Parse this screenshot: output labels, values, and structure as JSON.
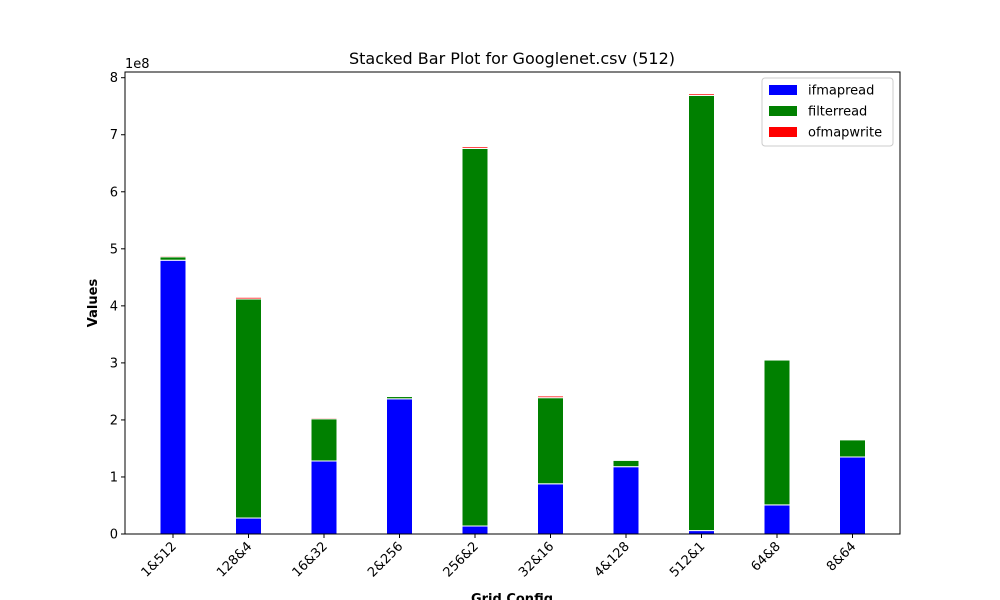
{
  "chart_data": {
    "type": "bar",
    "stacked": true,
    "title": "Stacked Bar Plot for Googlenet.csv (512)",
    "xlabel": "Grid Config",
    "ylabel": "Values",
    "y_offset_label": "1e8",
    "y_scale": 100000000,
    "ylim": [
      0,
      8.1
    ],
    "yticks": [
      0,
      1,
      2,
      3,
      4,
      5,
      6,
      7,
      8
    ],
    "legend_position": "top-right",
    "grid": false,
    "categories": [
      "1&512",
      "128&4",
      "16&32",
      "2&256",
      "256&2",
      "32&16",
      "4&128",
      "512&1",
      "64&8",
      "8&64"
    ],
    "series": [
      {
        "name": "ifmapread",
        "color": "#0000ff",
        "values": [
          4.8,
          0.28,
          1.28,
          2.37,
          0.14,
          0.88,
          1.18,
          0.06,
          0.51,
          1.35
        ]
      },
      {
        "name": "filterread",
        "color": "#008000",
        "values": [
          0.06,
          3.84,
          0.74,
          0.04,
          6.62,
          1.51,
          0.11,
          7.63,
          2.54,
          0.3
        ]
      },
      {
        "name": "ofmapwrite",
        "color": "#ff0000",
        "values": [
          0.02,
          0.03,
          0.02,
          0.0,
          0.03,
          0.03,
          0.0,
          0.03,
          0.0,
          0.0
        ]
      }
    ]
  }
}
